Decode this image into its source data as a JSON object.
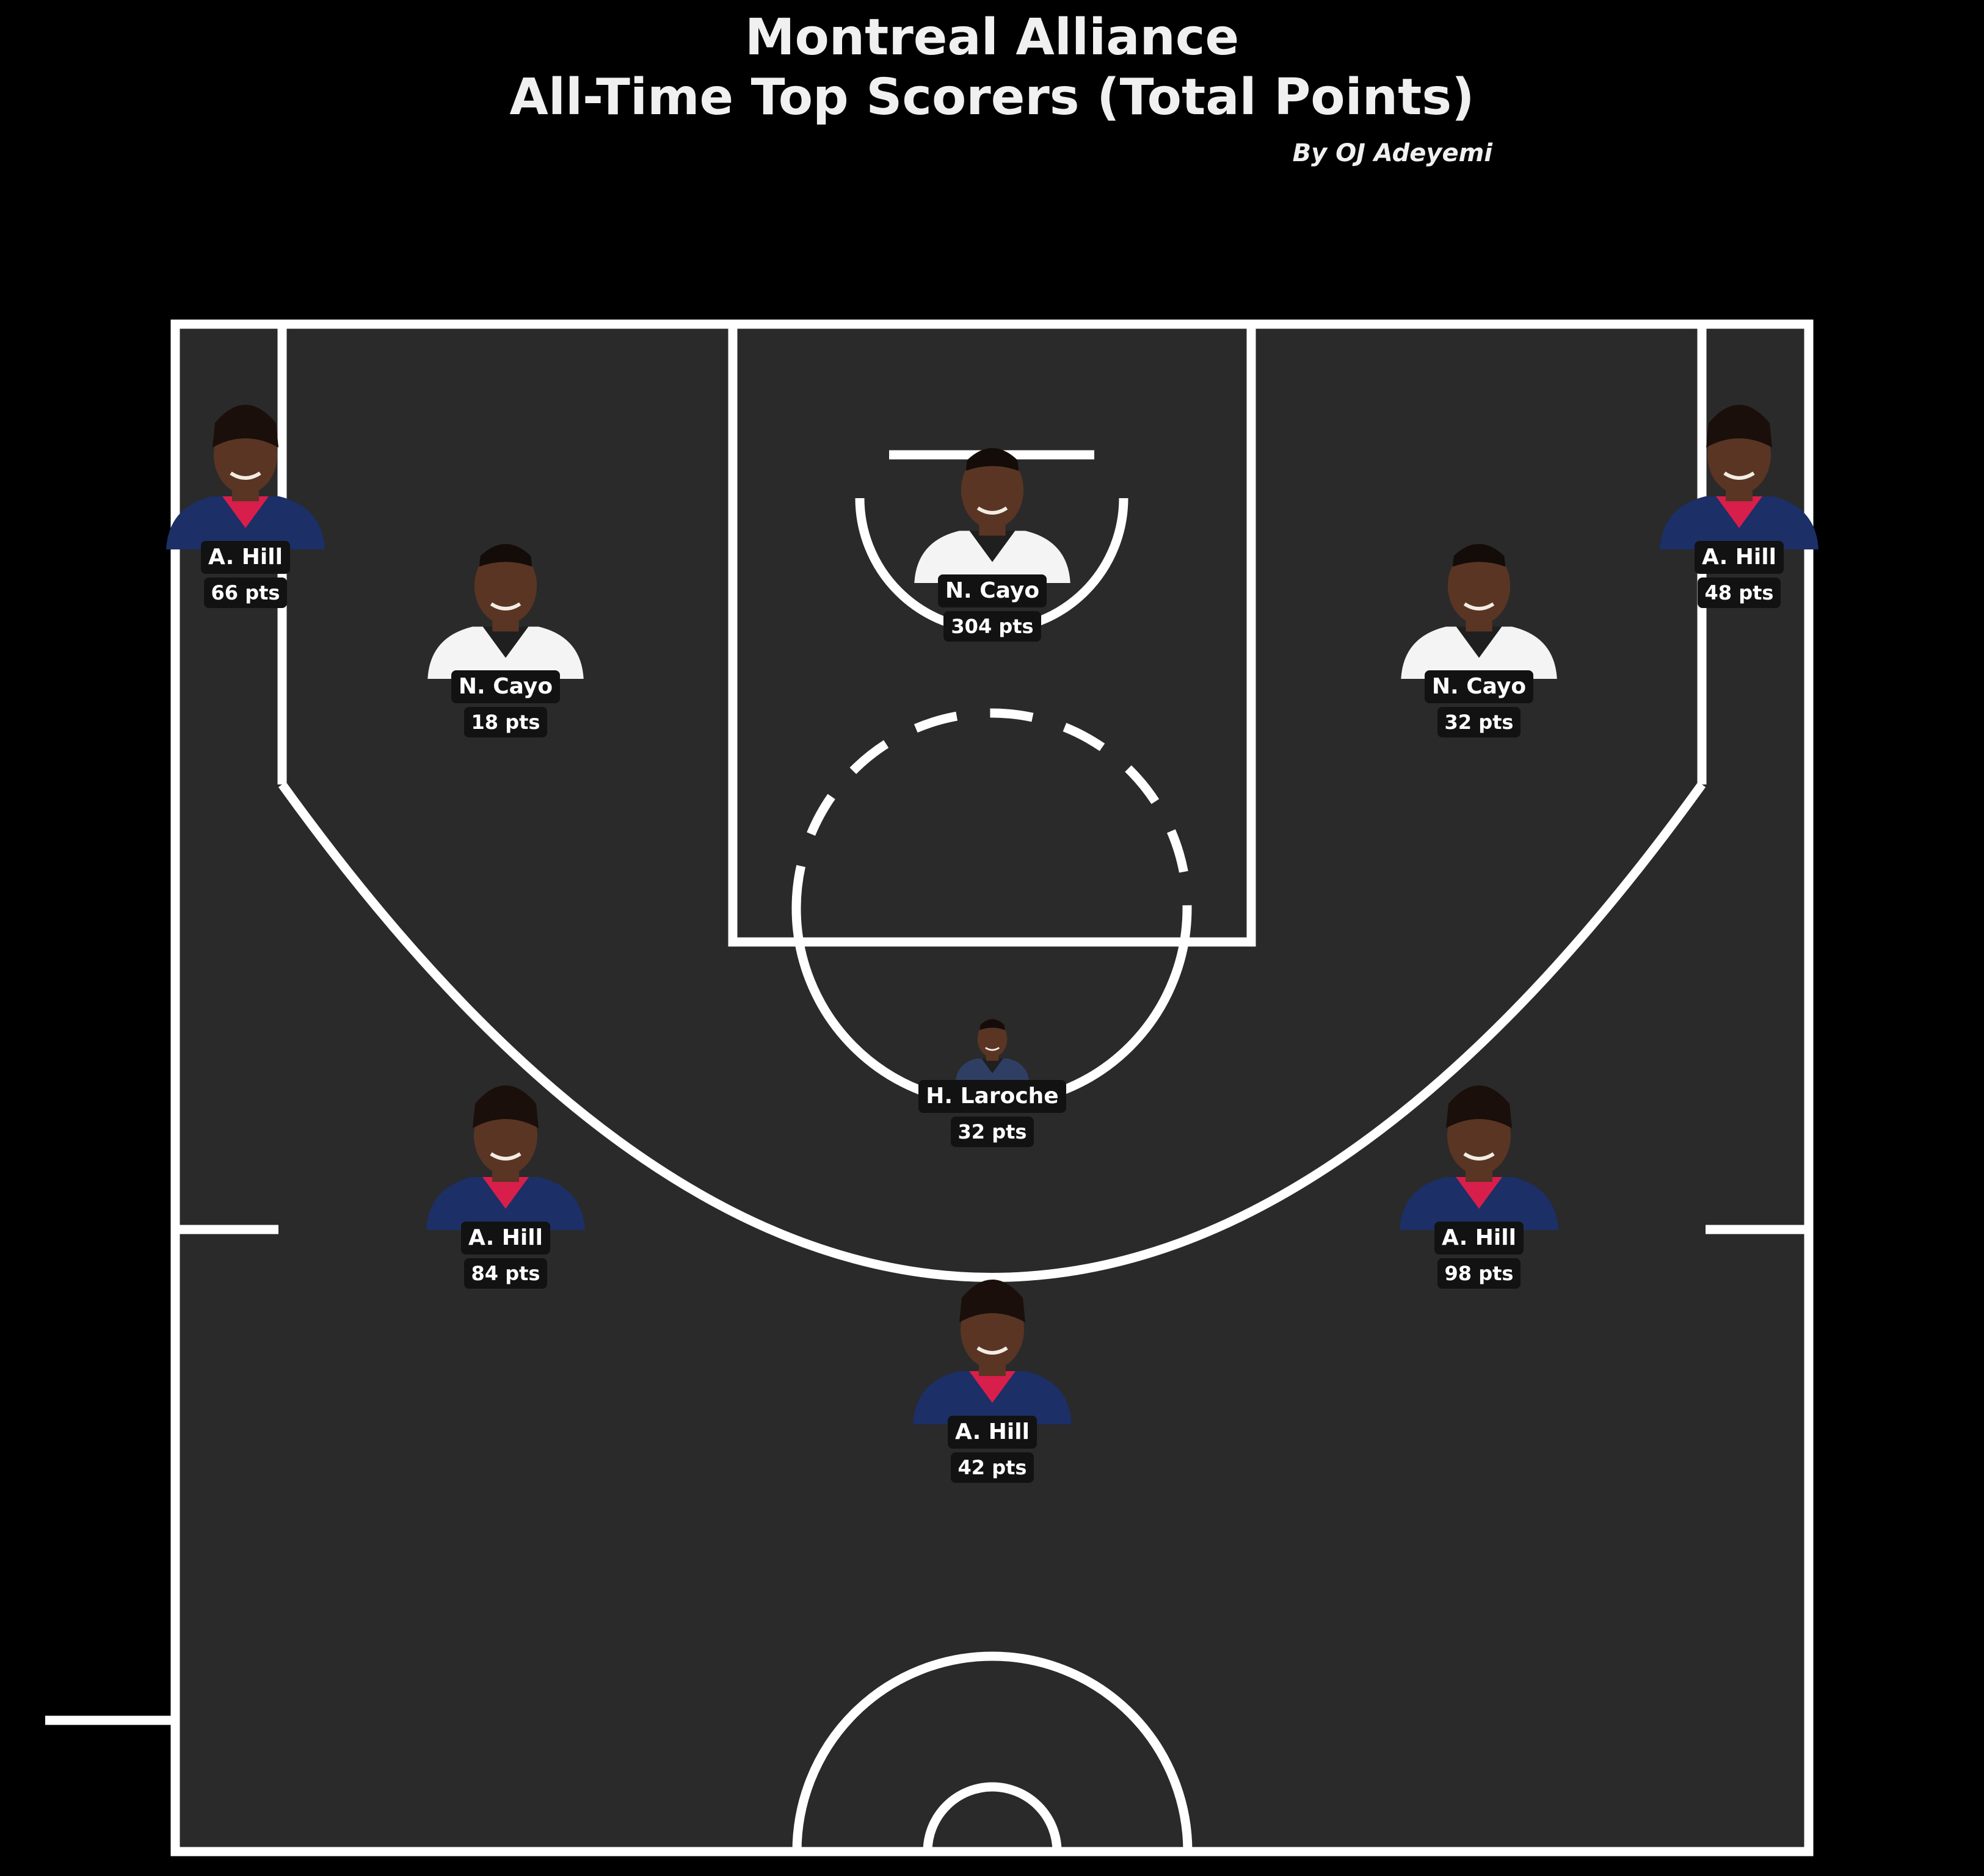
{
  "chart_data": {
    "type": "scatter",
    "title": "Montreal Alliance",
    "subtitle": "All-Time Top Scorers (Total Points)",
    "credit": "By OJ Adeyemi",
    "unit_suffix": "pts",
    "colors": {
      "background": "#000000",
      "court": "#2a2a2a",
      "lines": "#ffffff",
      "label_bg": "#121212",
      "hill_jersey": "#1c2f66",
      "hill_trim": "#d81e4a",
      "cayo_jersey": "#f4f4f4",
      "laroche_jersey": "#2e3f63",
      "skin": "#5a3523"
    },
    "zones": [
      {
        "zone": "left-corner-three",
        "player": "A. Hill",
        "points": 66,
        "jersey": "hill"
      },
      {
        "zone": "left-midrange-baseline",
        "player": "N. Cayo",
        "points": 18,
        "jersey": "cayo"
      },
      {
        "zone": "paint",
        "player": "N. Cayo",
        "points": 304,
        "jersey": "cayo"
      },
      {
        "zone": "right-midrange-baseline",
        "player": "N. Cayo",
        "points": 32,
        "jersey": "cayo"
      },
      {
        "zone": "right-corner-three",
        "player": "A. Hill",
        "points": 48,
        "jersey": "hill"
      },
      {
        "zone": "top-of-key-midrange",
        "player": "H. Laroche",
        "points": 32,
        "jersey": "laroche"
      },
      {
        "zone": "left-wing-three",
        "player": "A. Hill",
        "points": 84,
        "jersey": "hill"
      },
      {
        "zone": "right-wing-three",
        "player": "A. Hill",
        "points": 98,
        "jersey": "hill"
      },
      {
        "zone": "top-of-key-three",
        "player": "A. Hill",
        "points": 42,
        "jersey": "hill"
      }
    ]
  }
}
